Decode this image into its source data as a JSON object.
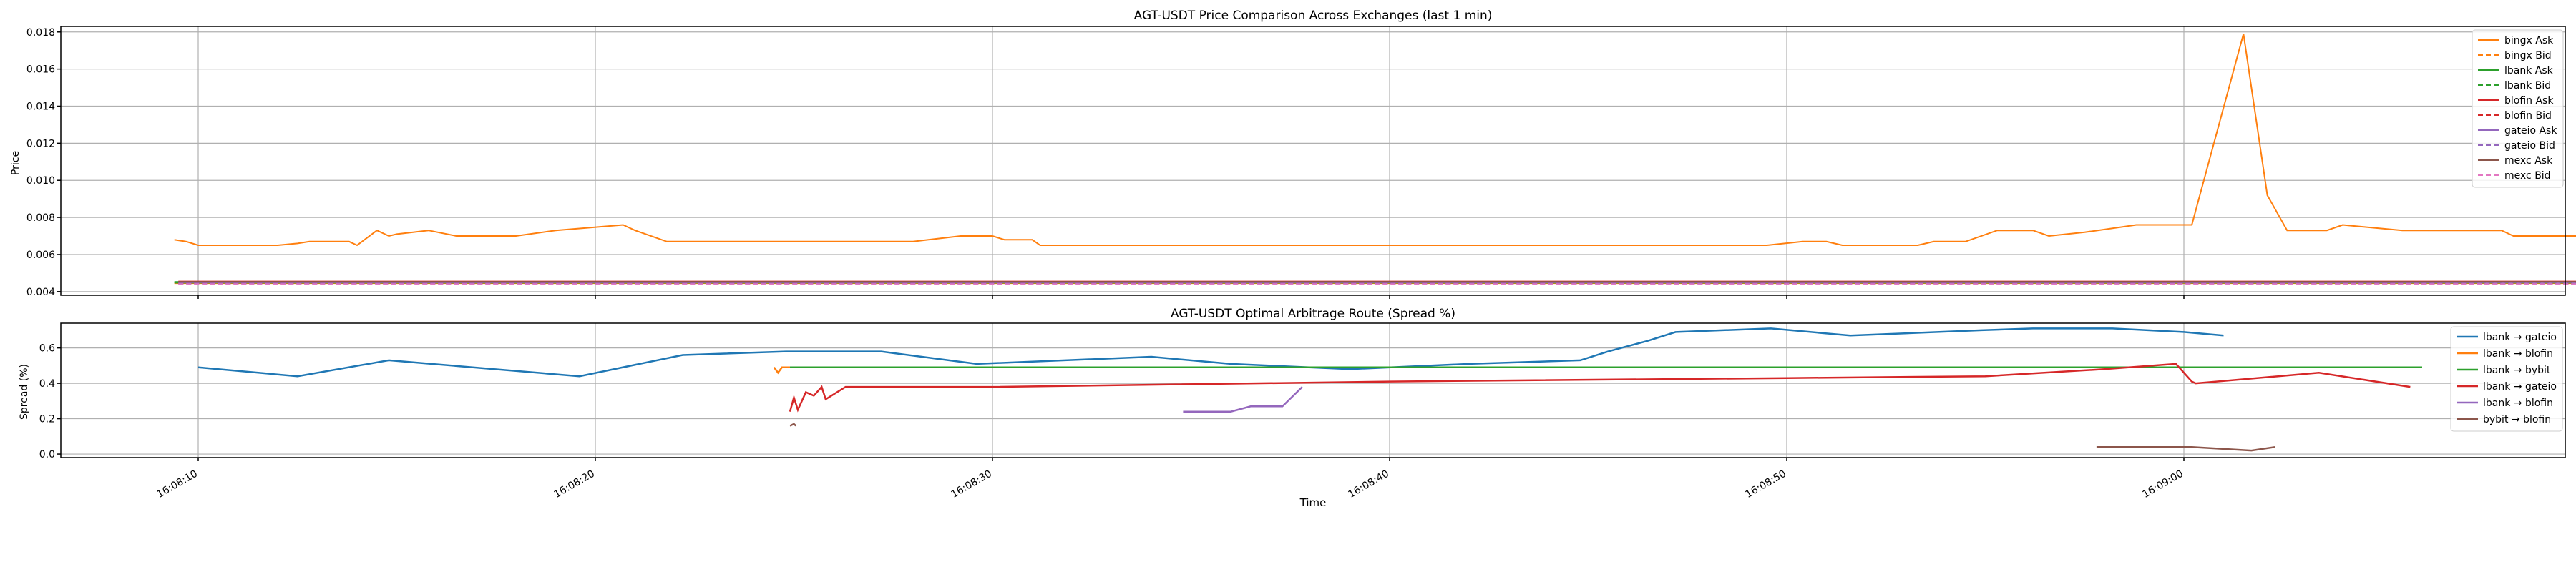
{
  "chart_data": [
    {
      "type": "line",
      "title": "AGT-USDT Price Comparison Across Exchanges (last 1 min)",
      "xlabel": "",
      "ylabel": "Price",
      "ylim": [
        0.0038,
        0.0183
      ],
      "yticks": [
        "0.004",
        "0.006",
        "0.008",
        "0.010",
        "0.012",
        "0.014",
        "0.016",
        "0.018"
      ],
      "grid": true,
      "legend_position": "upper-right",
      "series": [
        {
          "name": "bingx Ask",
          "color": "#ff7f0e",
          "dash": "solid",
          "points": [
            [
              -0.6,
              0.0068
            ],
            [
              -0.3,
              0.0067
            ],
            [
              0,
              0.0065
            ],
            [
              1,
              0.0065
            ],
            [
              2,
              0.0065
            ],
            [
              2.5,
              0.0066
            ],
            [
              2.8,
              0.0067
            ],
            [
              3.2,
              0.0067
            ],
            [
              3.8,
              0.0067
            ],
            [
              4,
              0.0065
            ],
            [
              4.5,
              0.0073
            ],
            [
              4.8,
              0.007
            ],
            [
              5,
              0.0071
            ],
            [
              5.8,
              0.0073
            ],
            [
              6.5,
              0.007
            ],
            [
              7,
              0.007
            ],
            [
              8,
              0.007
            ],
            [
              9,
              0.0073
            ],
            [
              10.7,
              0.0076
            ],
            [
              11,
              0.0073
            ],
            [
              11.8,
              0.0067
            ],
            [
              12.5,
              0.0067
            ],
            [
              14,
              0.0067
            ],
            [
              16,
              0.0067
            ],
            [
              18,
              0.0067
            ],
            [
              19.2,
              0.007
            ],
            [
              20,
              0.007
            ],
            [
              20.3,
              0.0068
            ],
            [
              21,
              0.0068
            ],
            [
              21.2,
              0.0065
            ],
            [
              22,
              0.0065
            ],
            [
              24,
              0.0065
            ],
            [
              26,
              0.0065
            ],
            [
              28,
              0.0065
            ],
            [
              30,
              0.0065
            ],
            [
              32,
              0.0065
            ],
            [
              34,
              0.0065
            ],
            [
              36,
              0.0065
            ],
            [
              39.5,
              0.0065
            ],
            [
              40.4,
              0.0067
            ],
            [
              41,
              0.0067
            ],
            [
              41.4,
              0.0065
            ],
            [
              42,
              0.0065
            ],
            [
              43.3,
              0.0065
            ],
            [
              43.7,
              0.0067
            ],
            [
              44.5,
              0.0067
            ],
            [
              45.3,
              0.0073
            ],
            [
              46.2,
              0.0073
            ],
            [
              46.6,
              0.007
            ],
            [
              47.5,
              0.0072
            ],
            [
              48.8,
              0.0076
            ],
            [
              50.2,
              0.0076
            ],
            [
              51.5,
              0.0179
            ],
            [
              52.1,
              0.0092
            ],
            [
              52.6,
              0.0073
            ],
            [
              53.6,
              0.0073
            ],
            [
              54,
              0.0076
            ],
            [
              54.5,
              0.0075
            ],
            [
              55.5,
              0.0073
            ],
            [
              56.5,
              0.0073
            ],
            [
              58,
              0.0073
            ],
            [
              58.3,
              0.007
            ],
            [
              59,
              0.007
            ],
            [
              60,
              0.007
            ],
            [
              61.5,
              0.0073
            ],
            [
              62.5,
              0.007
            ],
            [
              64,
              0.007
            ],
            [
              65,
              0.007
            ],
            [
              66.7,
              0.007
            ]
          ]
        },
        {
          "name": "bingx Bid",
          "color": "#ff7f0e",
          "dash": "dashed",
          "points": [
            [
              -0.6,
              0.00445
            ],
            [
              0,
              0.00445
            ],
            [
              10,
              0.00445
            ],
            [
              20,
              0.00445
            ],
            [
              30,
              0.00445
            ],
            [
              40,
              0.00445
            ],
            [
              50,
              0.00445
            ],
            [
              60,
              0.00445
            ],
            [
              66.7,
              0.00445
            ]
          ]
        },
        {
          "name": "lbank Ask",
          "color": "#2ca02c",
          "dash": "solid",
          "points": [
            [
              -0.6,
              0.00452
            ],
            [
              10,
              0.00452
            ],
            [
              20,
              0.00452
            ],
            [
              30,
              0.00452
            ],
            [
              40,
              0.00452
            ],
            [
              50,
              0.00452
            ],
            [
              60,
              0.00452
            ],
            [
              66.7,
              0.00452
            ]
          ]
        },
        {
          "name": "lbank Bid",
          "color": "#2ca02c",
          "dash": "dashed",
          "points": [
            [
              -0.6,
              0.00448
            ],
            [
              10,
              0.00448
            ],
            [
              20,
              0.00448
            ],
            [
              30,
              0.00448
            ],
            [
              40,
              0.00448
            ],
            [
              50,
              0.00448
            ],
            [
              60,
              0.00448
            ],
            [
              66.7,
              0.00448
            ]
          ]
        },
        {
          "name": "blofin Ask",
          "color": "#d62728",
          "dash": "solid",
          "points": [
            [
              -0.5,
              0.00455
            ],
            [
              10,
              0.00455
            ],
            [
              20,
              0.00455
            ],
            [
              30,
              0.00455
            ],
            [
              40,
              0.00455
            ],
            [
              50,
              0.00455
            ],
            [
              60,
              0.00455
            ],
            [
              66.7,
              0.00455
            ]
          ]
        },
        {
          "name": "blofin Bid",
          "color": "#d62728",
          "dash": "dashed",
          "points": [
            [
              -0.5,
              0.00445
            ],
            [
              10,
              0.00445
            ],
            [
              20,
              0.00445
            ],
            [
              30,
              0.00445
            ],
            [
              40,
              0.00445
            ],
            [
              50,
              0.00445
            ],
            [
              60,
              0.00442
            ],
            [
              66.7,
              0.00442
            ]
          ]
        },
        {
          "name": "gateio Ask",
          "color": "#9467bd",
          "dash": "solid",
          "points": [
            [
              -0.5,
              0.0045
            ],
            [
              10,
              0.0045
            ],
            [
              20,
              0.0045
            ],
            [
              30,
              0.0045
            ],
            [
              40,
              0.0045
            ],
            [
              50,
              0.0045
            ],
            [
              60,
              0.0045
            ],
            [
              66.7,
              0.0045
            ]
          ]
        },
        {
          "name": "gateio Bid",
          "color": "#9467bd",
          "dash": "dashed",
          "points": [
            [
              -0.5,
              0.00443
            ],
            [
              10,
              0.00443
            ],
            [
              20,
              0.00443
            ],
            [
              30,
              0.00443
            ],
            [
              40,
              0.00443
            ],
            [
              50,
              0.00443
            ],
            [
              60,
              0.00443
            ],
            [
              66.7,
              0.00443
            ]
          ]
        },
        {
          "name": "mexc Ask",
          "color": "#8c564b",
          "dash": "solid",
          "points": [
            [
              -0.5,
              0.00453
            ],
            [
              10,
              0.00453
            ],
            [
              20,
              0.00453
            ],
            [
              30,
              0.00453
            ],
            [
              40,
              0.00453
            ],
            [
              50,
              0.00453
            ],
            [
              60,
              0.00453
            ],
            [
              66.7,
              0.00453
            ]
          ]
        },
        {
          "name": "mexc Bid",
          "color": "#e377c2",
          "dash": "dashed",
          "points": [
            [
              -0.5,
              0.0044
            ],
            [
              10,
              0.0044
            ],
            [
              20,
              0.0044
            ],
            [
              30,
              0.0044
            ],
            [
              40,
              0.0044
            ],
            [
              50,
              0.0044
            ],
            [
              60,
              0.0044
            ],
            [
              66.7,
              0.0044
            ]
          ]
        }
      ]
    },
    {
      "type": "line",
      "title": "AGT-USDT Optimal Arbitrage Route (Spread %)",
      "xlabel": "Time",
      "ylabel": "Spread (%)",
      "ylim": [
        -0.02,
        0.74
      ],
      "yticks": [
        "0.0",
        "0.2",
        "0.4",
        "0.6"
      ],
      "xticks": [
        "16:08:10",
        "16:08:20",
        "16:08:30",
        "16:08:40",
        "16:08:50",
        "16:09:00"
      ],
      "xlim_seconds_from_16_08_10": [
        -3.5,
        60
      ],
      "grid": true,
      "legend_position": "upper-right",
      "series": [
        {
          "name": "lbank → gateio",
          "color": "#1f77b4",
          "points": [
            [
              0,
              0.49
            ],
            [
              2.5,
              0.44
            ],
            [
              4.8,
              0.53
            ],
            [
              9.6,
              0.44
            ],
            [
              12.2,
              0.56
            ],
            [
              14.8,
              0.58
            ],
            [
              16.8,
              0.58
            ],
            [
              17.2,
              0.58
            ],
            [
              19.6,
              0.51
            ],
            [
              24,
              0.55
            ],
            [
              26,
              0.51
            ],
            [
              29,
              0.48
            ],
            [
              32,
              0.51
            ],
            [
              34.8,
              0.53
            ],
            [
              35.5,
              0.58
            ],
            [
              36.5,
              0.64
            ],
            [
              37.2,
              0.69
            ],
            [
              39.6,
              0.71
            ],
            [
              41.6,
              0.67
            ],
            [
              44.9,
              0.7
            ],
            [
              46.2,
              0.71
            ],
            [
              48.2,
              0.71
            ],
            [
              50,
              0.69
            ],
            [
              51,
              0.67
            ]
          ]
        },
        {
          "name": "lbank → blofin",
          "color": "#ff7f0e",
          "points": [
            [
              14.5,
              0.49
            ],
            [
              14.6,
              0.46
            ],
            [
              14.7,
              0.49
            ],
            [
              20,
              0.49
            ],
            [
              30,
              0.49
            ],
            [
              40,
              0.49
            ],
            [
              50,
              0.49
            ],
            [
              56,
              0.49
            ]
          ]
        },
        {
          "name": "lbank → bybit",
          "color": "#2ca02c",
          "points": [
            [
              14.9,
              0.49
            ],
            [
              20,
              0.49
            ],
            [
              30,
              0.49
            ],
            [
              40,
              0.49
            ],
            [
              50,
              0.49
            ],
            [
              56,
              0.49
            ]
          ]
        },
        {
          "name": "lbank → gateio",
          "color": "#d62728",
          "points": [
            [
              14.9,
              0.24
            ],
            [
              15.0,
              0.32
            ],
            [
              15.1,
              0.25
            ],
            [
              15.3,
              0.35
            ],
            [
              15.5,
              0.33
            ],
            [
              15.7,
              0.38
            ],
            [
              15.8,
              0.31
            ],
            [
              16.3,
              0.38
            ],
            [
              20,
              0.38
            ],
            [
              30,
              0.41
            ],
            [
              40,
              0.43
            ],
            [
              45,
              0.44
            ],
            [
              48,
              0.48
            ],
            [
              49.8,
              0.51
            ],
            [
              50.2,
              0.41
            ],
            [
              50.3,
              0.4
            ],
            [
              53.4,
              0.46
            ],
            [
              55.7,
              0.38
            ]
          ]
        },
        {
          "name": "lbank → blofin",
          "color": "#9467bd",
          "points": [
            [
              24.8,
              0.24
            ],
            [
              26,
              0.24
            ],
            [
              26.5,
              0.27
            ],
            [
              27.3,
              0.27
            ],
            [
              27.8,
              0.38
            ]
          ]
        },
        {
          "name": "bybit → blofin",
          "color": "#8c564b",
          "points": [
            [
              14.9,
              0.16
            ],
            [
              15.0,
              0.17
            ],
            [
              15.05,
              0.16
            ]
          ],
          "points2": [
            [
              47.8,
              0.04
            ],
            [
              50,
              0.04
            ],
            [
              50.2,
              0.04
            ],
            [
              51.7,
              0.02
            ],
            [
              52.3,
              0.04
            ]
          ]
        }
      ]
    }
  ]
}
